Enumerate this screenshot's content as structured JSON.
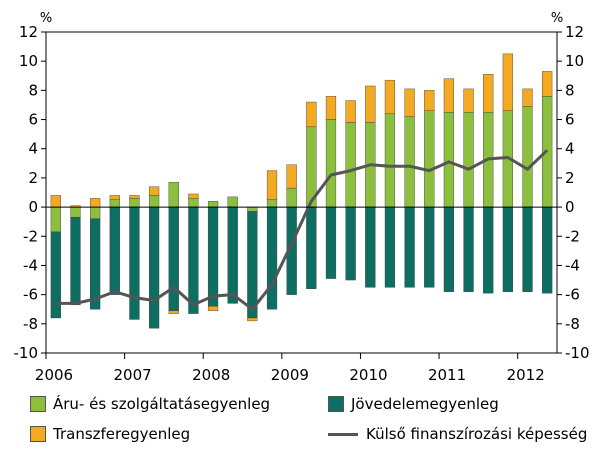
{
  "chart_data": {
    "type": "bar",
    "unit_left": "%",
    "unit_right": "%",
    "ylim": [
      -10,
      12
    ],
    "yticks": [
      -10,
      -8,
      -6,
      -4,
      -2,
      0,
      2,
      4,
      6,
      8,
      10,
      12
    ],
    "year_labels": [
      "2006",
      "2007",
      "2008",
      "2009",
      "2010",
      "2011",
      "2012"
    ],
    "categories": [
      "2006Q1",
      "2006Q2",
      "2006Q3",
      "2006Q4",
      "2007Q1",
      "2007Q2",
      "2007Q3",
      "2007Q4",
      "2008Q1",
      "2008Q2",
      "2008Q3",
      "2008Q4",
      "2009Q1",
      "2009Q2",
      "2009Q3",
      "2009Q4",
      "2010Q1",
      "2010Q2",
      "2010Q3",
      "2010Q4",
      "2011Q1",
      "2011Q2",
      "2011Q3",
      "2011Q4",
      "2012Q1",
      "2012Q2"
    ],
    "series": [
      {
        "name": "Áru- és szolgáltatásegyenleg",
        "kind": "bar",
        "color": "#8dbf3f",
        "values": [
          -1.7,
          -0.7,
          -0.8,
          0.5,
          0.6,
          0.8,
          1.7,
          0.6,
          0.4,
          0.7,
          -0.3,
          0.5,
          1.3,
          5.5,
          6.0,
          5.8,
          5.8,
          6.4,
          6.2,
          6.6,
          6.5,
          6.5,
          6.5,
          6.6,
          6.9,
          7.6
        ]
      },
      {
        "name": "Jövedelemegyenleg",
        "kind": "bar",
        "color": "#0f6e62",
        "values": [
          -5.9,
          -6.0,
          -6.2,
          -6.0,
          -7.7,
          -8.3,
          -7.1,
          -7.3,
          -6.8,
          -6.6,
          -7.3,
          -7.0,
          -6.0,
          -5.6,
          -4.9,
          -5.0,
          -5.5,
          -5.5,
          -5.5,
          -5.5,
          -5.8,
          -5.8,
          -5.9,
          -5.8,
          -5.8,
          -5.9
        ]
      },
      {
        "name": "Transzferegyenleg",
        "kind": "bar",
        "color": "#f3a921",
        "values": [
          0.8,
          0.1,
          0.6,
          0.3,
          0.2,
          0.6,
          -0.2,
          0.3,
          -0.3,
          0.0,
          -0.2,
          2.0,
          1.6,
          1.7,
          1.6,
          1.5,
          2.5,
          2.3,
          1.9,
          1.4,
          2.3,
          1.6,
          2.6,
          3.9,
          1.2,
          1.7
        ]
      },
      {
        "name": "Külső finanszírozási képesség",
        "kind": "line",
        "color": "#555555",
        "values": [
          -6.6,
          -6.6,
          -6.3,
          -5.8,
          -6.2,
          -6.4,
          -5.5,
          -6.7,
          -6.1,
          -6.0,
          -7.0,
          -5.3,
          -2.5,
          0.4,
          2.2,
          2.5,
          2.9,
          2.8,
          2.8,
          2.5,
          3.1,
          2.6,
          3.3,
          3.4,
          2.6,
          3.9
        ]
      }
    ]
  }
}
